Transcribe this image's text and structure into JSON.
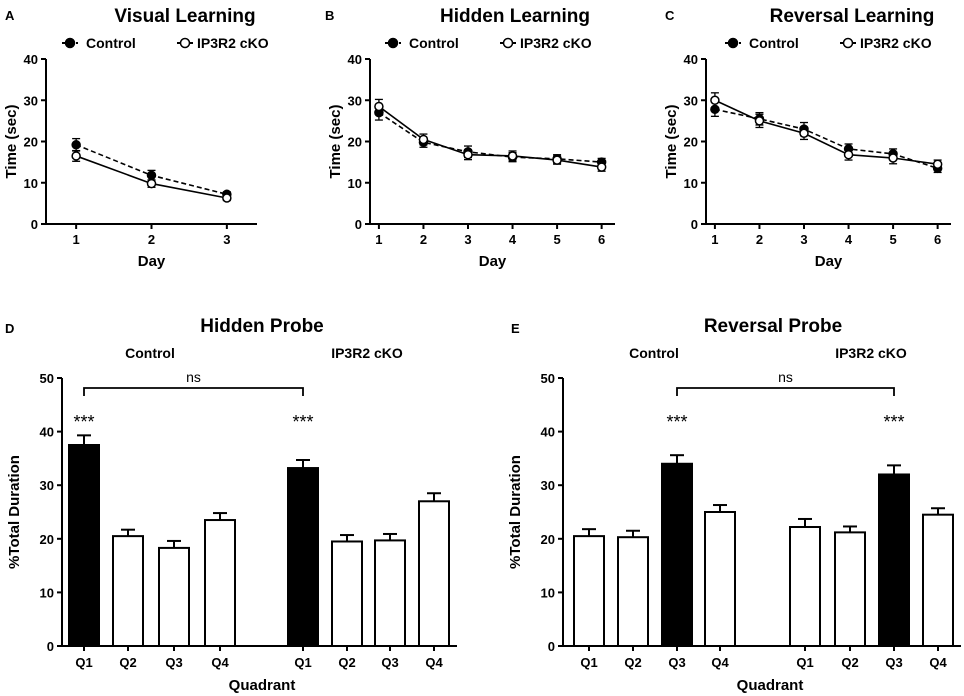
{
  "chart_data": [
    {
      "panel": "A",
      "type": "line",
      "title": "Visual Learning",
      "xlabel": "Day",
      "ylabel": "Time (sec)",
      "xlim": [
        0.6,
        3.4
      ],
      "ylim": [
        0,
        40
      ],
      "yticks": [
        0,
        10,
        20,
        30,
        40
      ],
      "x": [
        1,
        2,
        3
      ],
      "legend_position": "top",
      "series": [
        {
          "name": "Control",
          "marker": "filled-circle",
          "line": "dashed",
          "values": [
            19.2,
            11.8,
            7.2
          ],
          "errors": [
            1.5,
            1.2,
            0.6
          ]
        },
        {
          "name": "IP3R2 cKO",
          "marker": "open-circle",
          "line": "solid",
          "values": [
            16.5,
            9.8,
            6.3
          ],
          "errors": [
            1.3,
            0.9,
            0.6
          ]
        }
      ]
    },
    {
      "panel": "B",
      "type": "line",
      "title": "Hidden Learning",
      "xlabel": "Day",
      "ylabel": "Time (sec)",
      "xlim": [
        0.8,
        6.3
      ],
      "ylim": [
        0,
        40
      ],
      "yticks": [
        0,
        10,
        20,
        30,
        40
      ],
      "x": [
        1,
        2,
        3,
        4,
        5,
        6
      ],
      "legend_position": "top",
      "series": [
        {
          "name": "Control",
          "marker": "filled-circle",
          "line": "dashed",
          "values": [
            27.0,
            19.8,
            17.5,
            16.2,
            15.8,
            15.0
          ],
          "errors": [
            1.8,
            1.2,
            1.4,
            1.1,
            1.0,
            0.9
          ]
        },
        {
          "name": "IP3R2 cKO",
          "marker": "open-circle",
          "line": "solid",
          "values": [
            28.5,
            20.5,
            16.8,
            16.5,
            15.5,
            13.8
          ],
          "errors": [
            1.7,
            1.3,
            1.2,
            1.2,
            1.0,
            1.0
          ]
        }
      ]
    },
    {
      "panel": "C",
      "type": "line",
      "title": "Reversal Learning",
      "xlabel": "Day",
      "ylabel": "Time (sec)",
      "xlim": [
        0.8,
        6.3
      ],
      "ylim": [
        0,
        40
      ],
      "yticks": [
        0,
        10,
        20,
        30,
        40
      ],
      "x": [
        1,
        2,
        3,
        4,
        5,
        6
      ],
      "legend_position": "top",
      "series": [
        {
          "name": "Control",
          "marker": "filled-circle",
          "line": "dashed",
          "values": [
            27.8,
            25.5,
            23.0,
            18.2,
            17.0,
            13.5
          ],
          "errors": [
            1.7,
            1.5,
            1.6,
            1.2,
            1.2,
            1.0
          ]
        },
        {
          "name": "IP3R2 cKO",
          "marker": "open-circle",
          "line": "solid",
          "values": [
            30.0,
            25.0,
            22.0,
            16.8,
            16.0,
            14.5
          ],
          "errors": [
            1.8,
            1.6,
            1.5,
            1.3,
            1.4,
            1.0
          ]
        }
      ]
    },
    {
      "panel": "D",
      "type": "bar",
      "title": "Hidden Probe",
      "xlabel": "Quadrant",
      "ylabel": "%Total  Duration",
      "ylim": [
        0,
        50
      ],
      "yticks": [
        0,
        10,
        20,
        30,
        40,
        50
      ],
      "groups": [
        {
          "name": "Control",
          "categories": [
            "Q1",
            "Q2",
            "Q3",
            "Q4"
          ],
          "values": [
            37.5,
            20.5,
            18.3,
            23.5
          ],
          "errors": [
            1.8,
            1.2,
            1.3,
            1.3
          ],
          "filled": [
            true,
            false,
            false,
            false
          ],
          "significance": [
            "***",
            "",
            "",
            ""
          ]
        },
        {
          "name": "IP3R2 cKO",
          "categories": [
            "Q1",
            "Q2",
            "Q3",
            "Q4"
          ],
          "values": [
            33.2,
            19.5,
            19.7,
            27.0
          ],
          "errors": [
            1.5,
            1.2,
            1.2,
            1.5
          ],
          "filled": [
            true,
            false,
            false,
            false
          ],
          "significance": [
            "***",
            "",
            "",
            ""
          ]
        }
      ],
      "comparison": {
        "label": "ns",
        "from_group": 0,
        "from_index": 0,
        "to_group": 1,
        "to_index": 0
      }
    },
    {
      "panel": "E",
      "type": "bar",
      "title": "Reversal Probe",
      "xlabel": "Quadrant",
      "ylabel": "%Total  Duration",
      "ylim": [
        0,
        50
      ],
      "yticks": [
        0,
        10,
        20,
        30,
        40,
        50
      ],
      "groups": [
        {
          "name": "Control",
          "categories": [
            "Q1",
            "Q2",
            "Q3",
            "Q4"
          ],
          "values": [
            20.5,
            20.3,
            34.0,
            25.0
          ],
          "errors": [
            1.3,
            1.2,
            1.6,
            1.3
          ],
          "filled": [
            false,
            false,
            true,
            false
          ],
          "significance": [
            "",
            "",
            "***",
            ""
          ]
        },
        {
          "name": "IP3R2 cKO",
          "categories": [
            "Q1",
            "Q2",
            "Q3",
            "Q4"
          ],
          "values": [
            22.2,
            21.2,
            32.0,
            24.5
          ],
          "errors": [
            1.5,
            1.1,
            1.7,
            1.2
          ],
          "filled": [
            false,
            false,
            true,
            false
          ],
          "significance": [
            "",
            "",
            "***",
            ""
          ]
        }
      ],
      "comparison": {
        "label": "ns",
        "from_group": 0,
        "from_index": 2,
        "to_group": 1,
        "to_index": 2
      }
    }
  ]
}
